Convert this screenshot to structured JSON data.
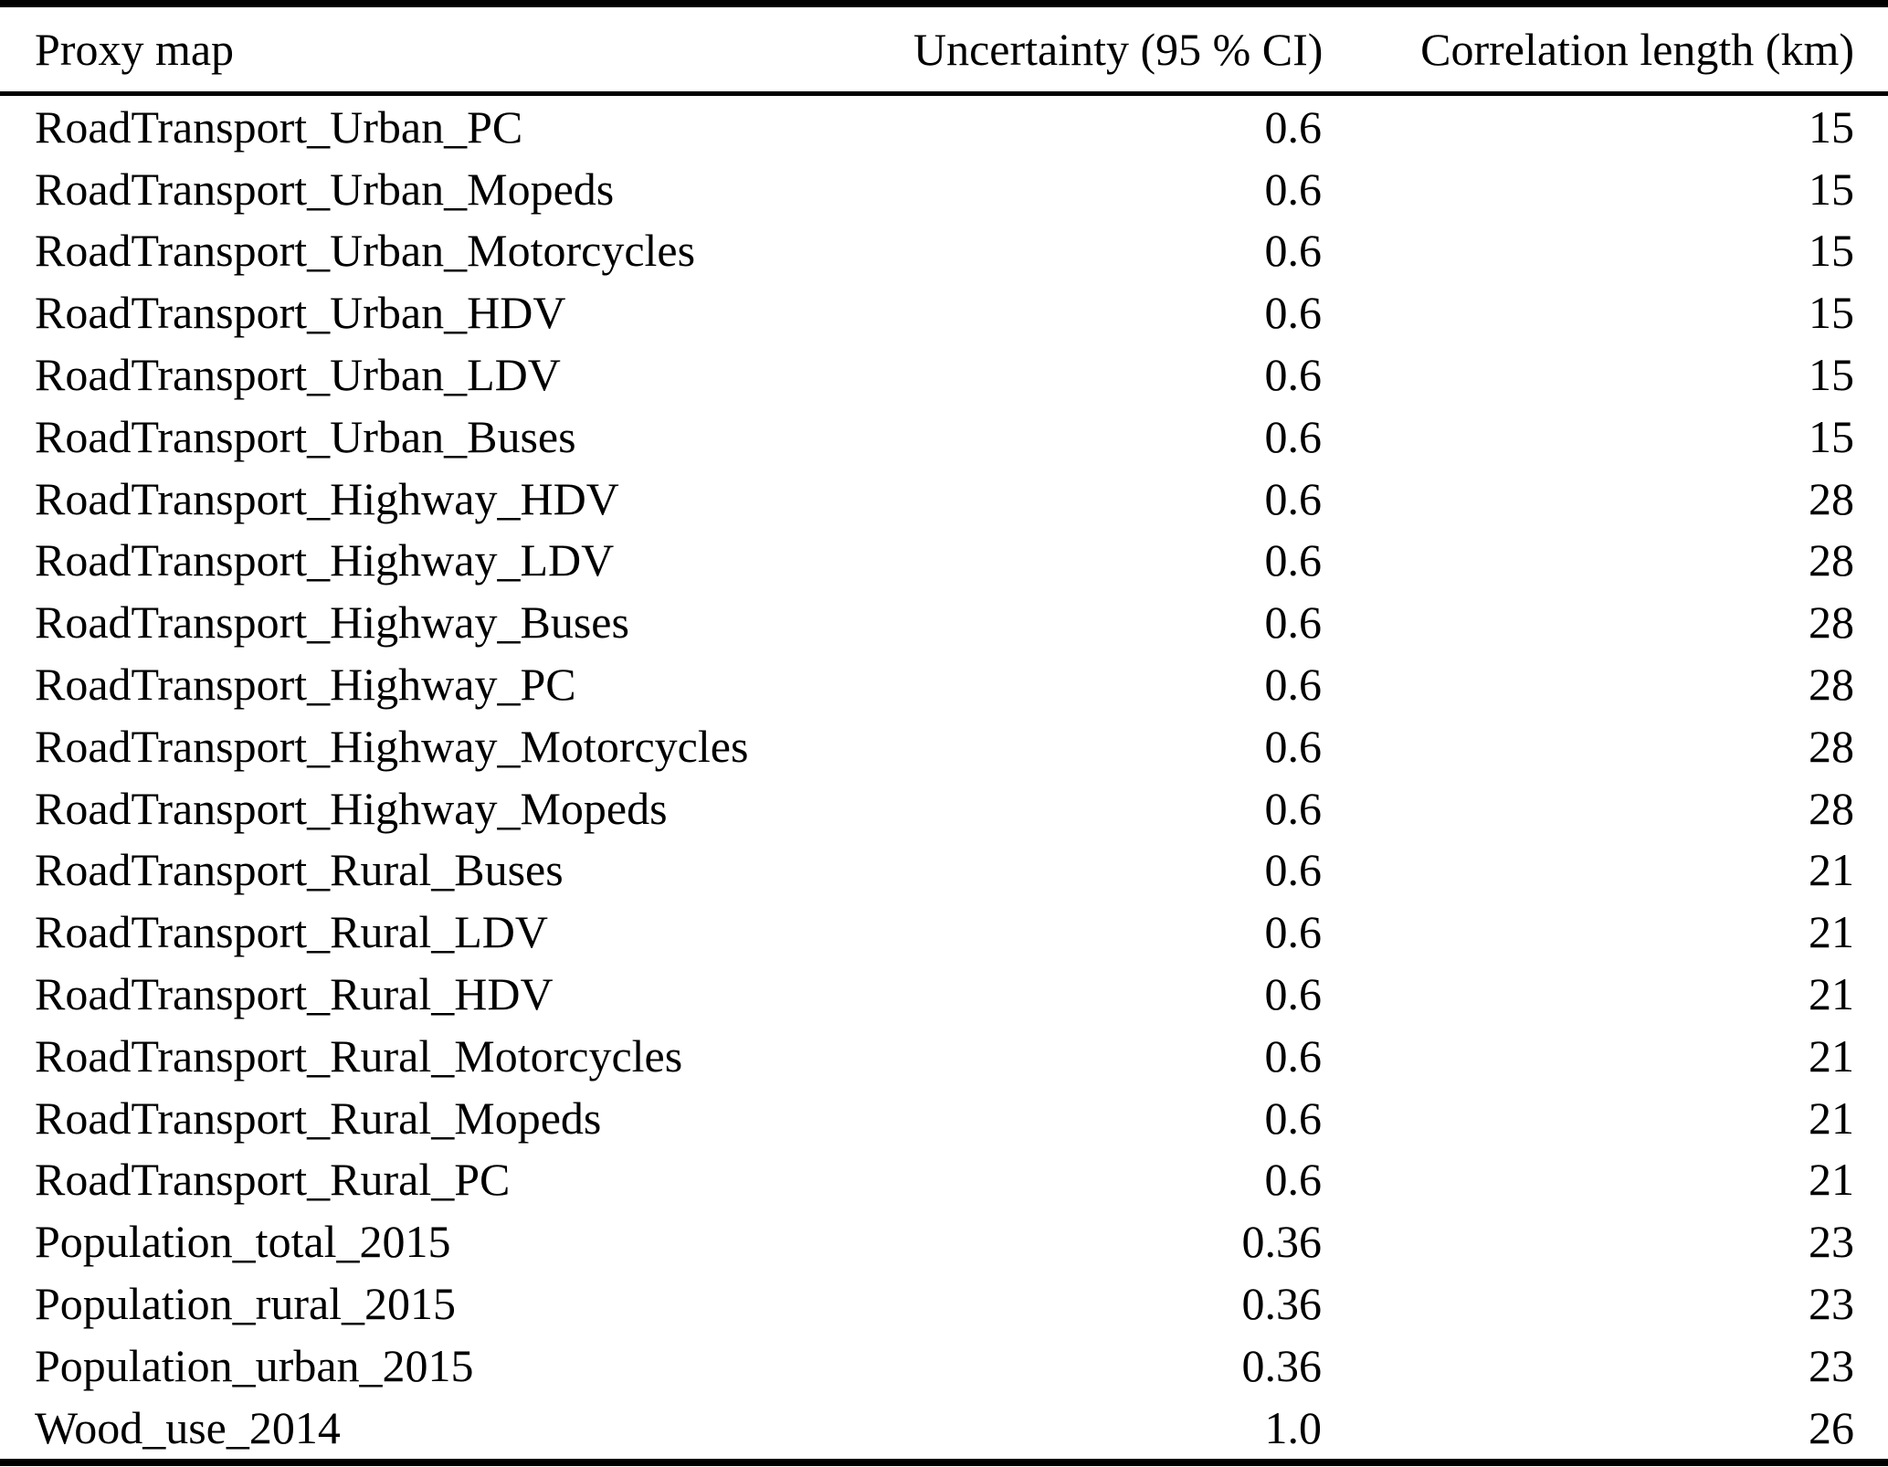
{
  "table": {
    "columns": [
      {
        "label": "Proxy map"
      },
      {
        "label": "Uncertainty (95 % CI)"
      },
      {
        "label": "Correlation length (km)"
      }
    ],
    "rows": [
      {
        "proxy_map": "RoadTransport_Urban_PC",
        "uncertainty": "0.6",
        "correlation_length": "15"
      },
      {
        "proxy_map": "RoadTransport_Urban_Mopeds",
        "uncertainty": "0.6",
        "correlation_length": "15"
      },
      {
        "proxy_map": "RoadTransport_Urban_Motorcycles",
        "uncertainty": "0.6",
        "correlation_length": "15"
      },
      {
        "proxy_map": "RoadTransport_Urban_HDV",
        "uncertainty": "0.6",
        "correlation_length": "15"
      },
      {
        "proxy_map": "RoadTransport_Urban_LDV",
        "uncertainty": "0.6",
        "correlation_length": "15"
      },
      {
        "proxy_map": "RoadTransport_Urban_Buses",
        "uncertainty": "0.6",
        "correlation_length": "15"
      },
      {
        "proxy_map": "RoadTransport_Highway_HDV",
        "uncertainty": "0.6",
        "correlation_length": "28"
      },
      {
        "proxy_map": "RoadTransport_Highway_LDV",
        "uncertainty": "0.6",
        "correlation_length": "28"
      },
      {
        "proxy_map": "RoadTransport_Highway_Buses",
        "uncertainty": "0.6",
        "correlation_length": "28"
      },
      {
        "proxy_map": "RoadTransport_Highway_PC",
        "uncertainty": "0.6",
        "correlation_length": "28"
      },
      {
        "proxy_map": "RoadTransport_Highway_Motorcycles",
        "uncertainty": "0.6",
        "correlation_length": "28"
      },
      {
        "proxy_map": "RoadTransport_Highway_Mopeds",
        "uncertainty": "0.6",
        "correlation_length": "28"
      },
      {
        "proxy_map": "RoadTransport_Rural_Buses",
        "uncertainty": "0.6",
        "correlation_length": "21"
      },
      {
        "proxy_map": "RoadTransport_Rural_LDV",
        "uncertainty": "0.6",
        "correlation_length": "21"
      },
      {
        "proxy_map": "RoadTransport_Rural_HDV",
        "uncertainty": "0.6",
        "correlation_length": "21"
      },
      {
        "proxy_map": "RoadTransport_Rural_Motorcycles",
        "uncertainty": "0.6",
        "correlation_length": "21"
      },
      {
        "proxy_map": "RoadTransport_Rural_Mopeds",
        "uncertainty": "0.6",
        "correlation_length": "21"
      },
      {
        "proxy_map": "RoadTransport_Rural_PC",
        "uncertainty": "0.6",
        "correlation_length": "21"
      },
      {
        "proxy_map": "Population_total_2015",
        "uncertainty": "0.36",
        "correlation_length": "23"
      },
      {
        "proxy_map": "Population_rural_2015",
        "uncertainty": "0.36",
        "correlation_length": "23"
      },
      {
        "proxy_map": "Population_urban_2015",
        "uncertainty": "0.36",
        "correlation_length": "23"
      },
      {
        "proxy_map": "Wood_use_2014",
        "uncertainty": "1.0",
        "correlation_length": "26"
      }
    ]
  }
}
